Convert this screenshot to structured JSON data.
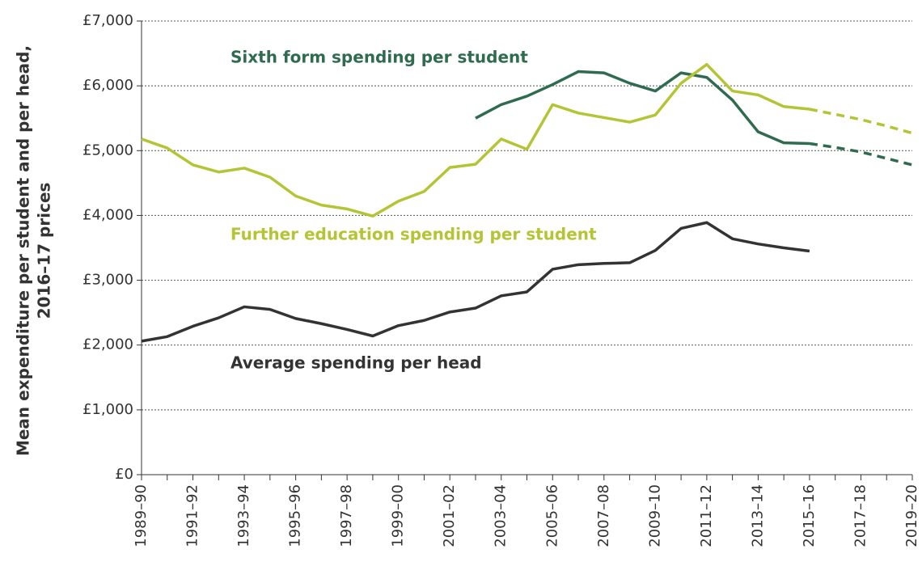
{
  "chart_data": {
    "type": "line",
    "y_label": [
      "Mean expenditure per student and per head,",
      "2016–17 prices"
    ],
    "categories": [
      "1989–90",
      null,
      "1991–92",
      null,
      "1993–94",
      null,
      "1995–96",
      null,
      "1997–98",
      null,
      "1999–00",
      null,
      "2001–02",
      null,
      "2003–04",
      null,
      "2005–06",
      null,
      "2007–08",
      null,
      "2009–10",
      null,
      "2011–12",
      null,
      "2013–14",
      null,
      "2015–16",
      null,
      "2017–18",
      null,
      "2019–20"
    ],
    "series": [
      {
        "name": "Sixth form spending per student",
        "color": "#2e6b4f",
        "dashed_from": "2015–16",
        "values": [
          null,
          null,
          null,
          null,
          null,
          null,
          null,
          null,
          null,
          null,
          null,
          null,
          null,
          5500,
          5710,
          5840,
          6020,
          6220,
          6200,
          6040,
          5920,
          6200,
          6130,
          5780,
          5290,
          5120,
          5110,
          5050,
          4980,
          4880,
          4780
        ]
      },
      {
        "name": "Further education spending per student",
        "color": "#b5c434",
        "dashed_from": "2015–16",
        "values": [
          5180,
          5040,
          4780,
          4670,
          4730,
          4590,
          4300,
          4160,
          4100,
          3990,
          4220,
          4370,
          4740,
          4790,
          5180,
          5020,
          5710,
          5580,
          5510,
          5440,
          5550,
          6040,
          6330,
          5920,
          5860,
          5680,
          5640,
          5560,
          5480,
          5380,
          5270
        ]
      },
      {
        "name": "Average spending per head",
        "color": "#333333",
        "values": [
          2060,
          2130,
          2290,
          2420,
          2590,
          2550,
          2410,
          2330,
          2240,
          2140,
          2300,
          2380,
          2510,
          2570,
          2760,
          2820,
          3170,
          3240,
          3260,
          3270,
          3460,
          3800,
          3890,
          3640,
          3560,
          3500,
          3450,
          null,
          null,
          null,
          null
        ]
      }
    ],
    "ylim": [
      0,
      7000
    ],
    "yticks": [
      {
        "value": 0,
        "label": "£0"
      },
      {
        "value": 1000,
        "label": "£1,000"
      },
      {
        "value": 2000,
        "label": "£2,000"
      },
      {
        "value": 3000,
        "label": "£3,000"
      },
      {
        "value": 4000,
        "label": "£4,000"
      },
      {
        "value": 5000,
        "label": "£5,000"
      },
      {
        "value": 6000,
        "label": "£6,000"
      },
      {
        "value": 7000,
        "label": "£7,000"
      }
    ],
    "grid": true
  }
}
